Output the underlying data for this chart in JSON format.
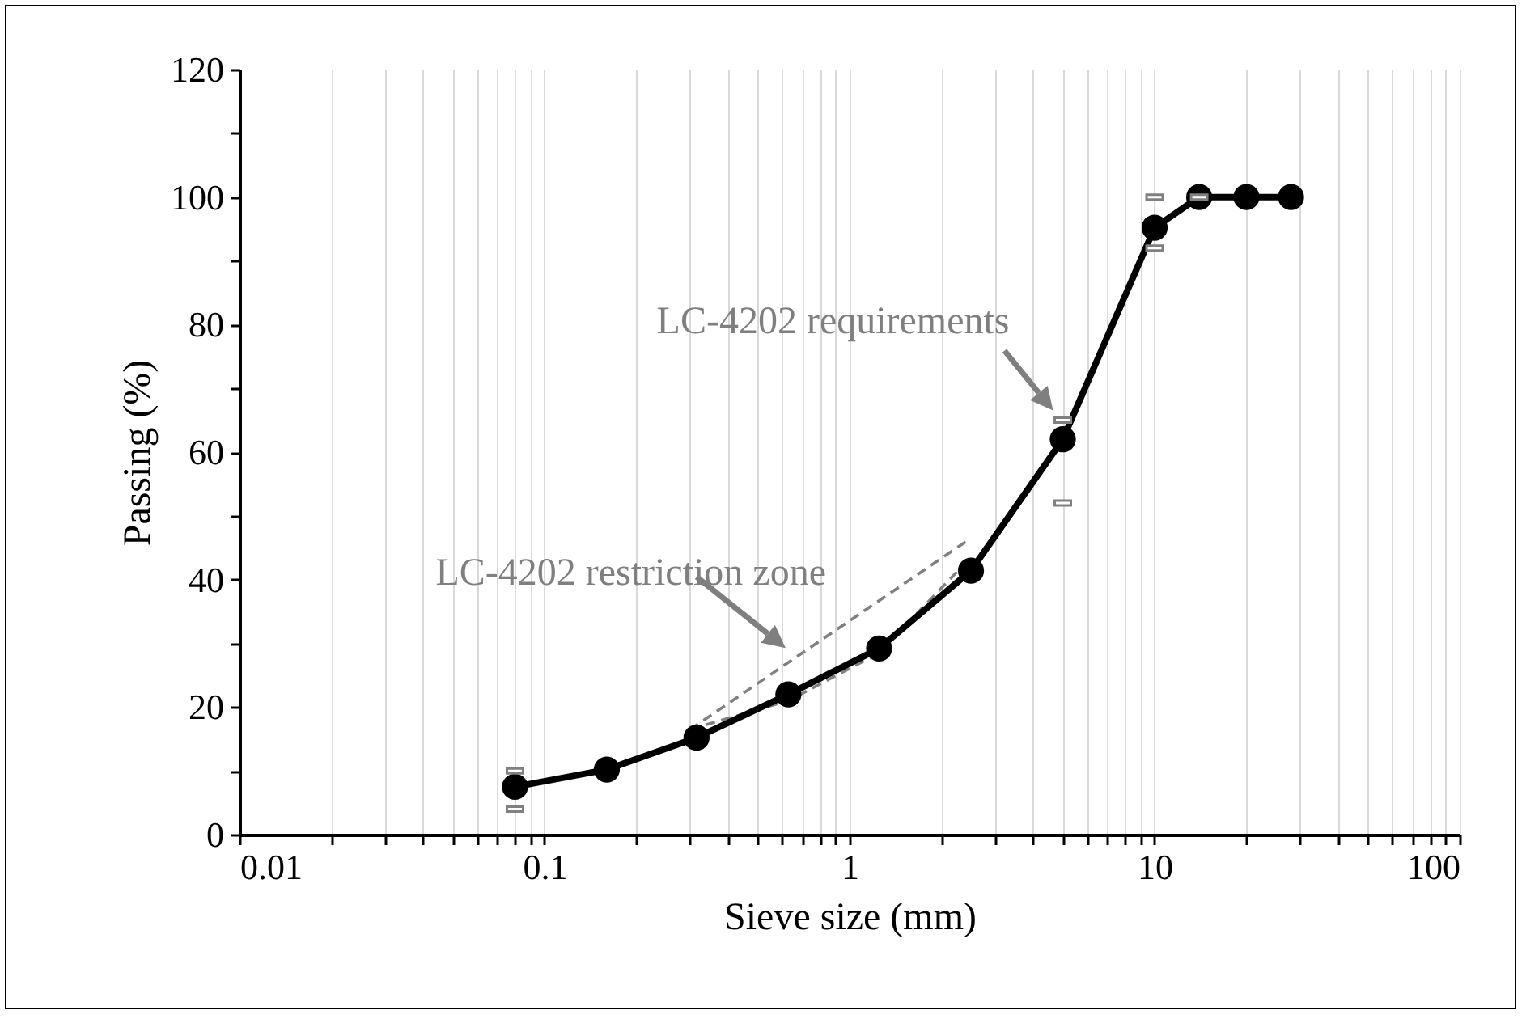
{
  "chart_data": {
    "type": "line",
    "xlabel": "Sieve size (mm)",
    "ylabel": "Passing (%)",
    "log": "x",
    "grid": "x",
    "xlim": [
      0.01,
      100
    ],
    "xticks": [
      0.01,
      {
        "value": 0.02,
        "label": null
      },
      {
        "value": 0.03,
        "label": null
      },
      {
        "value": 0.04,
        "label": null
      },
      {
        "value": 0.05,
        "label": null
      },
      {
        "value": 0.06,
        "label": null
      },
      {
        "value": 0.07,
        "label": null
      },
      {
        "value": 0.08,
        "label": null
      },
      {
        "value": 0.09,
        "label": null
      },
      0.1,
      {
        "value": 0.2,
        "label": null
      },
      {
        "value": 0.3,
        "label": null
      },
      {
        "value": 0.4,
        "label": null
      },
      {
        "value": 0.5,
        "label": null
      },
      {
        "value": 0.6,
        "label": null
      },
      {
        "value": 0.7,
        "label": null
      },
      {
        "value": 0.8,
        "label": null
      },
      {
        "value": 0.9,
        "label": null
      },
      1,
      {
        "value": 2,
        "label": null
      },
      {
        "value": 3,
        "label": null
      },
      {
        "value": 4,
        "label": null
      },
      {
        "value": 5,
        "label": null
      },
      {
        "value": 6,
        "label": null
      },
      {
        "value": 7,
        "label": null
      },
      {
        "value": 8,
        "label": null
      },
      {
        "value": 9,
        "label": null
      },
      10,
      {
        "value": 20,
        "label": null
      },
      {
        "value": 30,
        "label": null
      },
      {
        "value": 40,
        "label": null
      },
      {
        "value": 50,
        "label": null
      },
      {
        "value": 60,
        "label": null
      },
      {
        "value": 70,
        "label": null
      },
      {
        "value": 80,
        "label": null
      },
      {
        "value": 90,
        "label": null
      },
      100
    ],
    "ylim": [
      0,
      120
    ],
    "yticks": [
      0,
      {
        "value": 10,
        "label": null
      },
      20,
      {
        "value": 30,
        "label": null
      },
      40,
      {
        "value": 50,
        "label": null
      },
      60,
      {
        "value": 70,
        "label": null
      },
      80,
      {
        "value": 90,
        "label": null
      },
      100,
      {
        "value": 110,
        "label": null
      },
      120
    ],
    "annotations": [
      {
        "text": "LC-4202 requirements",
        "x": 5,
        "y": 65
      },
      {
        "text": "LC-4202 restriction zone",
        "x": 0.64,
        "y": 28
      }
    ],
    "series": [
      {
        "type": "line",
        "color": "#000000",
        "marker": "circle",
        "line_style": "solid",
        "x": [
          0.08,
          0.16,
          0.315,
          0.63,
          1.25,
          2.5,
          5,
          10,
          14,
          20,
          28
        ],
        "values": [
          7.5,
          10.2,
          15.2,
          22,
          29.2,
          41.4,
          62,
          95.2,
          100,
          100,
          100
        ]
      },
      {
        "type": "scatter",
        "color": "#808080",
        "marker": "square",
        "x": [
          0.08,
          0.08,
          5,
          5,
          10,
          10,
          14
        ],
        "values": [
          10,
          4,
          65,
          52,
          100,
          92,
          100
        ]
      },
      {
        "type": "line",
        "color": "#808080",
        "marker": "none",
        "line_style": "dashed",
        "x": [
          0.3,
          2.5
        ],
        "values": [
          16.5,
          46.5
        ]
      },
      {
        "type": "line",
        "color": "#808080",
        "marker": "none",
        "line_style": "dashed",
        "x": [
          0.3,
          0.63,
          1.25,
          2.5
        ],
        "values": [
          16.5,
          21,
          28.5,
          43.5
        ]
      }
    ]
  }
}
